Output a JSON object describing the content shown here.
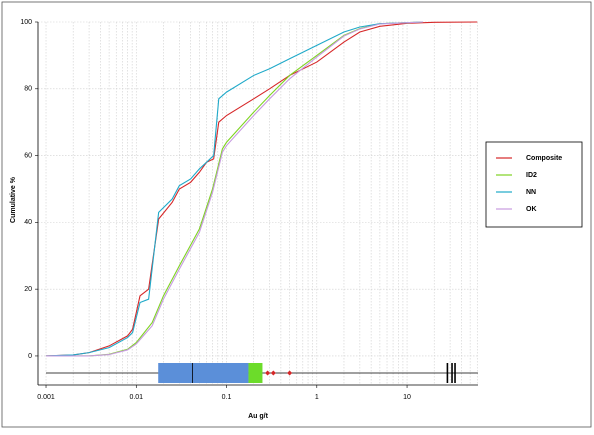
{
  "chart_data": {
    "type": "line",
    "x_label": "Au g/t",
    "y_label": "Cumulative %",
    "xscale": "log",
    "xlim": [
      0.000815,
      61.1
    ],
    "ylim": [
      -8.7,
      100
    ],
    "xticks": [
      0.001,
      0.01,
      0.1,
      1,
      10
    ],
    "xminorticks": [
      0.002,
      0.003,
      0.004,
      0.005,
      0.006,
      0.007,
      0.008,
      0.009,
      0.02,
      0.03,
      0.04,
      0.05,
      0.06,
      0.07,
      0.08,
      0.09,
      0.2,
      0.3,
      0.4,
      0.5,
      0.6,
      0.7,
      0.8,
      0.9,
      2,
      3,
      4,
      5,
      6,
      7,
      8,
      9,
      20,
      30,
      40,
      50,
      60
    ],
    "yticks": [
      0,
      20,
      40,
      60,
      80,
      100
    ],
    "grid": true,
    "legend": "right",
    "series": [
      {
        "name": "Composite",
        "color": "#d62728",
        "x": [
          0.001,
          0.002,
          0.003,
          0.005,
          0.008,
          0.0091,
          0.011,
          0.0137,
          0.0177,
          0.025,
          0.03,
          0.04,
          0.05,
          0.06,
          0.072,
          0.082,
          0.1,
          0.2,
          0.3,
          0.5,
          1,
          2,
          3,
          5,
          10,
          20,
          60
        ],
        "values": [
          0,
          0.3,
          1,
          3,
          6,
          8,
          18,
          20,
          41,
          46,
          50,
          52,
          55,
          58,
          59,
          70,
          72,
          77,
          80,
          84,
          88,
          94,
          97,
          98.7,
          99.6,
          99.9,
          100
        ]
      },
      {
        "name": "ID2",
        "color": "#7ed321",
        "x": [
          0.001,
          0.003,
          0.005,
          0.008,
          0.01,
          0.015,
          0.02,
          0.03,
          0.05,
          0.07,
          0.09,
          0.1,
          0.2,
          0.3,
          0.5,
          1,
          2,
          3,
          5,
          10,
          15
        ],
        "values": [
          0,
          0,
          0.5,
          2,
          4,
          10,
          18,
          27,
          38,
          50,
          62,
          64,
          73,
          78,
          84,
          90,
          96,
          98,
          99.5,
          99.8,
          100
        ]
      },
      {
        "name": "NN",
        "color": "#1fa9c9",
        "x": [
          0.001,
          0.002,
          0.003,
          0.005,
          0.008,
          0.0091,
          0.011,
          0.0137,
          0.0177,
          0.025,
          0.03,
          0.04,
          0.05,
          0.06,
          0.072,
          0.082,
          0.1,
          0.2,
          0.3,
          0.5,
          1,
          2,
          3,
          5,
          10,
          15
        ],
        "values": [
          0,
          0.3,
          1,
          2.5,
          5.5,
          7,
          16,
          17,
          43,
          47,
          51,
          53,
          56,
          58,
          60,
          77,
          79,
          84,
          86,
          89,
          93,
          97,
          98.5,
          99.5,
          99.8,
          100
        ]
      },
      {
        "name": "OK",
        "color": "#c79be0",
        "x": [
          0.001,
          0.003,
          0.005,
          0.008,
          0.01,
          0.015,
          0.02,
          0.03,
          0.05,
          0.07,
          0.09,
          0.1,
          0.2,
          0.3,
          0.5,
          1,
          2,
          3,
          5,
          10,
          15
        ],
        "values": [
          0,
          0,
          0.4,
          1.8,
          3.6,
          9,
          17,
          26,
          37,
          49,
          61,
          63,
          72,
          77,
          83,
          89.5,
          95.8,
          97.9,
          99.4,
          99.8,
          100
        ]
      }
    ],
    "boxplot": {
      "whiskers": [
        0.001,
        61
      ],
      "q1": 0.0175,
      "median": 0.042,
      "q3": 0.175,
      "upper": 0.25,
      "box_color": "#5b8fd9",
      "upper_color": "#6cdc2a",
      "outliers": [
        0.285,
        0.33,
        0.5
      ],
      "outlier_color": "#d62728",
      "extremes": [
        28,
        31.5,
        34
      ]
    }
  }
}
